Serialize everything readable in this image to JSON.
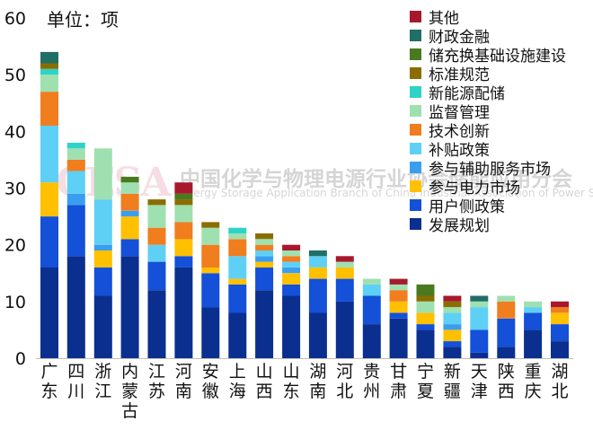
{
  "unit_label": "单位：项",
  "watermark": {
    "logo": "CESA",
    "cn": "中国化学与物理电源行业协会储能应用分会",
    "en": "Energy Storage Application Branch of China Industrial Association of Power Sources"
  },
  "chart_data": {
    "type": "bar",
    "stacked": true,
    "ylim": [
      0,
      60
    ],
    "yticks": [
      0,
      10,
      20,
      30,
      40,
      50,
      60
    ],
    "grid": false,
    "legend_position": "top-right",
    "categories": [
      "广东",
      "四川",
      "浙江",
      "内蒙古",
      "江苏",
      "河南",
      "安徽",
      "上海",
      "山西",
      "山东",
      "湖南",
      "河北",
      "贵州",
      "甘肃",
      "宁夏",
      "新疆",
      "天津",
      "陕西",
      "重庆",
      "湖北"
    ],
    "series": [
      {
        "name": "发展规划",
        "color": "#0b2f8f",
        "values": [
          16,
          18,
          11,
          18,
          12,
          16,
          9,
          8,
          12,
          11,
          8,
          10,
          6,
          7,
          5,
          2,
          1,
          2,
          5,
          3
        ]
      },
      {
        "name": "用户侧政策",
        "color": "#1450d8",
        "values": [
          9,
          9,
          5,
          3,
          5,
          2,
          6,
          5,
          4,
          2,
          6,
          4,
          5,
          1,
          1,
          1,
          4,
          5,
          3,
          3
        ]
      },
      {
        "name": "参与电力市场",
        "color": "#ffc000",
        "values": [
          6,
          0,
          3,
          4,
          0,
          3,
          1,
          1,
          1,
          2,
          2,
          2,
          0,
          2,
          2,
          2,
          0,
          0,
          0,
          2
        ]
      },
      {
        "name": "参与辅助服务市场",
        "color": "#3a9ef0",
        "values": [
          0,
          2,
          1,
          1,
          0,
          0,
          0,
          0,
          1,
          1,
          0,
          0,
          0,
          0,
          0,
          1,
          0,
          0,
          0,
          0
        ]
      },
      {
        "name": "补贴政策",
        "color": "#5fd0f5",
        "values": [
          10,
          4,
          8,
          0,
          3,
          0,
          0,
          4,
          1,
          1,
          2,
          0,
          2,
          0,
          0,
          2,
          4,
          0,
          1,
          0
        ]
      },
      {
        "name": "技术创新",
        "color": "#f07d1e",
        "values": [
          6,
          2,
          0,
          3,
          3,
          3,
          4,
          3,
          1,
          1,
          0,
          0,
          0,
          2,
          0,
          0,
          0,
          3,
          0,
          1
        ]
      },
      {
        "name": "监督管理",
        "color": "#9fe0b0",
        "values": [
          3,
          2,
          9,
          2,
          4,
          3,
          3,
          1,
          1,
          1,
          0,
          1,
          1,
          1,
          2,
          1,
          1,
          1,
          1,
          0
        ]
      },
      {
        "name": "新能源配储",
        "color": "#2ed3c8",
        "values": [
          1,
          1,
          0,
          0,
          0,
          0,
          0,
          1,
          0,
          0,
          0,
          0,
          0,
          0,
          0,
          0,
          0,
          0,
          0,
          0
        ]
      },
      {
        "name": "标准规范",
        "color": "#8a6d00",
        "values": [
          1,
          0,
          0,
          0,
          1,
          1,
          1,
          0,
          1,
          0,
          0,
          0,
          0,
          0,
          1,
          1,
          0,
          0,
          0,
          0
        ]
      },
      {
        "name": "储充换基础设施建设",
        "color": "#4a7a20",
        "values": [
          0,
          0,
          0,
          1,
          0,
          1,
          0,
          0,
          0,
          0,
          0,
          0,
          0,
          0,
          2,
          0,
          0,
          0,
          0,
          0
        ]
      },
      {
        "name": "财政金融",
        "color": "#1f6f66",
        "values": [
          2,
          0,
          0,
          0,
          0,
          0,
          0,
          0,
          0,
          0,
          1,
          0,
          0,
          0,
          0,
          0,
          1,
          0,
          0,
          0
        ]
      },
      {
        "name": "其他",
        "color": "#a8182c",
        "values": [
          0,
          0,
          0,
          0,
          0,
          2,
          0,
          0,
          0,
          1,
          0,
          1,
          0,
          1,
          0,
          1,
          0,
          0,
          0,
          1
        ]
      }
    ]
  }
}
